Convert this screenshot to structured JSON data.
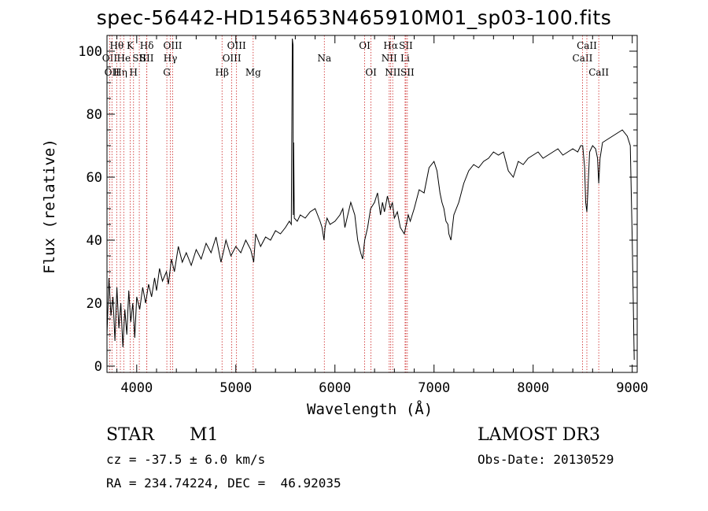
{
  "chart_data": {
    "type": "line",
    "title": "spec-56442-HD154653N465910M01_sp03-100.fits",
    "xlabel": "Wavelength (Å)",
    "ylabel": "Flux (relative)",
    "xlim": [
      3700,
      9050
    ],
    "ylim": [
      -2,
      105
    ],
    "xticks": [
      4000,
      5000,
      6000,
      7000,
      8000,
      9000
    ],
    "yticks": [
      0,
      20,
      40,
      60,
      80,
      100
    ],
    "series": [
      {
        "name": "flux",
        "x": [
          3700,
          3720,
          3740,
          3760,
          3780,
          3800,
          3820,
          3840,
          3860,
          3880,
          3900,
          3920,
          3940,
          3960,
          3980,
          4000,
          4030,
          4060,
          4090,
          4120,
          4150,
          4180,
          4200,
          4230,
          4260,
          4300,
          4320,
          4350,
          4380,
          4420,
          4460,
          4500,
          4550,
          4600,
          4650,
          4700,
          4750,
          4800,
          4850,
          4880,
          4900,
          4950,
          5000,
          5050,
          5100,
          5150,
          5180,
          5200,
          5250,
          5300,
          5350,
          5400,
          5450,
          5500,
          5540,
          5560,
          5570,
          5577,
          5580,
          5584,
          5590,
          5620,
          5650,
          5700,
          5750,
          5800,
          5850,
          5870,
          5890,
          5900,
          5920,
          5950,
          6000,
          6050,
          6080,
          6100,
          6130,
          6160,
          6200,
          6230,
          6260,
          6280,
          6300,
          6330,
          6360,
          6400,
          6430,
          6460,
          6480,
          6500,
          6530,
          6560,
          6580,
          6600,
          6630,
          6660,
          6700,
          6720,
          6740,
          6760,
          6800,
          6850,
          6900,
          6950,
          7000,
          7030,
          7060,
          7080,
          7100,
          7120,
          7140,
          7150,
          7170,
          7200,
          7250,
          7300,
          7350,
          7400,
          7450,
          7500,
          7550,
          7600,
          7650,
          7700,
          7750,
          7800,
          7850,
          7900,
          7950,
          8000,
          8050,
          8100,
          8150,
          8200,
          8250,
          8300,
          8350,
          8400,
          8450,
          8480,
          8500,
          8520,
          8530,
          8542,
          8550,
          8570,
          8600,
          8630,
          8650,
          8662,
          8675,
          8700,
          8750,
          8800,
          8850,
          8900,
          8950,
          8980,
          9000,
          9020
        ],
        "y": [
          10,
          28,
          16,
          22,
          8,
          25,
          12,
          20,
          6,
          18,
          10,
          24,
          14,
          20,
          9,
          22,
          18,
          25,
          20,
          26,
          22,
          28,
          24,
          31,
          27,
          30,
          26,
          34,
          30,
          38,
          33,
          36,
          32,
          37,
          34,
          39,
          36,
          41,
          33,
          37,
          40,
          35,
          38,
          36,
          40,
          37,
          33,
          42,
          38,
          41,
          40,
          43,
          42,
          44,
          46,
          45,
          104,
          102,
          48,
          71,
          47,
          46,
          48,
          47,
          49,
          50,
          46,
          44,
          40,
          44,
          47,
          45,
          46,
          48,
          50,
          44,
          48,
          52,
          48,
          40,
          36,
          34,
          40,
          44,
          50,
          52,
          55,
          48,
          52,
          49,
          54,
          50,
          52,
          47,
          49,
          44,
          42,
          45,
          48,
          46,
          50,
          56,
          55,
          63,
          65,
          62,
          55,
          52,
          50,
          46,
          45,
          42,
          40,
          48,
          52,
          58,
          62,
          64,
          63,
          65,
          66,
          68,
          67,
          68,
          62,
          60,
          65,
          64,
          66,
          67,
          68,
          66,
          67,
          68,
          69,
          67,
          68,
          69,
          68,
          70,
          70,
          63,
          52,
          49,
          54,
          68,
          70,
          69,
          66,
          58,
          66,
          71,
          72,
          73,
          74,
          75,
          73,
          70,
          40,
          2
        ]
      }
    ],
    "line_markers": [
      {
        "wave": 3727,
        "label": "OII",
        "row": 2
      },
      {
        "wave": 3750,
        "label": "OII",
        "row": 3
      },
      {
        "wave": 3798,
        "label": "Hθ",
        "row": 1
      },
      {
        "wave": 3835,
        "label": "Hη",
        "row": 3
      },
      {
        "wave": 3869,
        "label": "He",
        "row": 2
      },
      {
        "wave": 3934,
        "label": "K",
        "row": 1
      },
      {
        "wave": 3968,
        "label": "H",
        "row": 3
      },
      {
        "wave": 4026,
        "label": "SII",
        "row": 2
      },
      {
        "wave": 4102,
        "label": "Hδ",
        "row": 1
      },
      {
        "wave": 4102,
        "label": "SII",
        "row": 2
      },
      {
        "wave": 4304,
        "label": "G",
        "row": 3
      },
      {
        "wave": 4340,
        "label": "Hγ",
        "row": 2
      },
      {
        "wave": 4363,
        "label": "OIII",
        "row": 1
      },
      {
        "wave": 4861,
        "label": "Hβ",
        "row": 3
      },
      {
        "wave": 4959,
        "label": "OIII",
        "row": 2
      },
      {
        "wave": 5007,
        "label": "OIII",
        "row": 1
      },
      {
        "wave": 5175,
        "label": "Mg",
        "row": 3
      },
      {
        "wave": 5893,
        "label": "Na",
        "row": 2
      },
      {
        "wave": 6300,
        "label": "OI",
        "row": 1
      },
      {
        "wave": 6364,
        "label": "OI",
        "row": 3
      },
      {
        "wave": 6548,
        "label": "NII",
        "row": 2
      },
      {
        "wave": 6563,
        "label": "Hα",
        "row": 1
      },
      {
        "wave": 6583,
        "label": "NII",
        "row": 3
      },
      {
        "wave": 6708,
        "label": "Li",
        "row": 2
      },
      {
        "wave": 6716,
        "label": "SII",
        "row": 1
      },
      {
        "wave": 6731,
        "label": "SII",
        "row": 3
      },
      {
        "wave": 8498,
        "label": "CaII",
        "row": 2
      },
      {
        "wave": 8542,
        "label": "CaII",
        "row": 1
      },
      {
        "wave": 8662,
        "label": "CaII",
        "row": 3
      }
    ]
  },
  "info": {
    "object_type": "STAR",
    "subclass": "M1",
    "survey": "LAMOST DR3",
    "redshift": "cz = -37.5 ± 6.0 km/s",
    "obs_date": "Obs-Date: 20130529",
    "coords": "RA = 234.74224, DEC =  46.92035"
  }
}
